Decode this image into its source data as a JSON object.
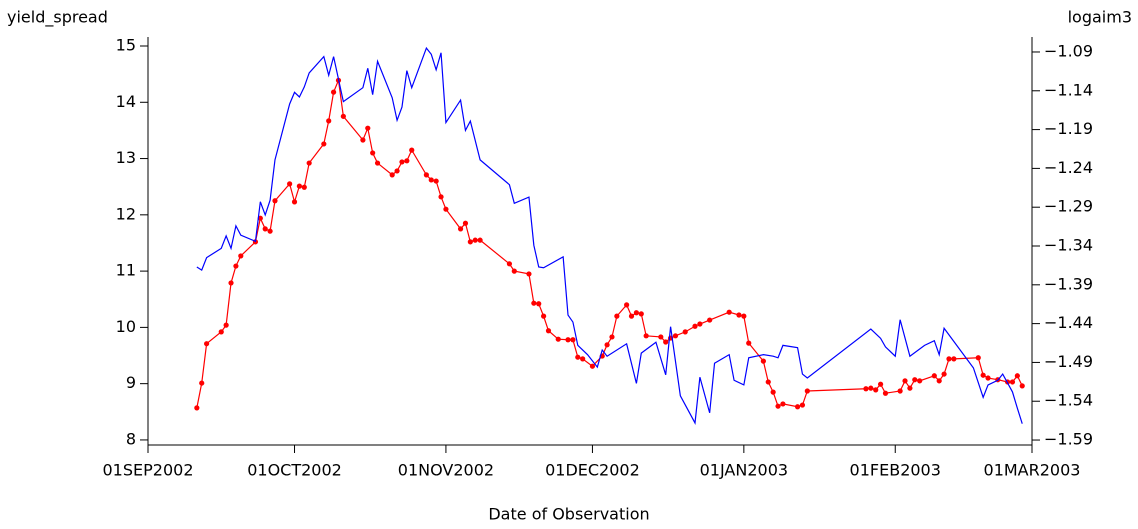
{
  "chart_data": {
    "type": "line",
    "ylabel": "yield_spread",
    "y2label": "logaim3",
    "xlabel": "Date of Observation",
    "xlim": [
      "2002-09-01",
      "2003-03-01"
    ],
    "xticks": [
      {
        "value": "2002-09-01",
        "label": "01SEP2002"
      },
      {
        "value": "2002-10-01",
        "label": "01OCT2002"
      },
      {
        "value": "2002-11-01",
        "label": "01NOV2002"
      },
      {
        "value": "2002-12-01",
        "label": "01DEC2002"
      },
      {
        "value": "2003-01-01",
        "label": "01JAN2003"
      },
      {
        "value": "2003-02-01",
        "label": "01FEB2003"
      },
      {
        "value": "2003-03-01",
        "label": "01MAR2003"
      }
    ],
    "ylim": [
      7.91,
      15.16
    ],
    "yticks": [
      8,
      9,
      10,
      11,
      12,
      13,
      14,
      15
    ],
    "y2lim": [
      -1.5964,
      -1.0707
    ],
    "y2ticks": [
      {
        "value": -1.09,
        "label": "−1.09"
      },
      {
        "value": -1.14,
        "label": "−1.14"
      },
      {
        "value": -1.19,
        "label": "−1.19"
      },
      {
        "value": -1.24,
        "label": "−1.24"
      },
      {
        "value": -1.29,
        "label": "−1.29"
      },
      {
        "value": -1.34,
        "label": "−1.34"
      },
      {
        "value": -1.39,
        "label": "−1.39"
      },
      {
        "value": -1.44,
        "label": "−1.44"
      },
      {
        "value": -1.49,
        "label": "−1.49"
      },
      {
        "value": -1.54,
        "label": "−1.54"
      },
      {
        "value": -1.59,
        "label": "−1.59"
      }
    ],
    "series": [
      {
        "color": "#ff0000",
        "markers": true,
        "x": [
          "2002-09-11",
          "2002-09-12",
          "2002-09-13",
          "2002-09-16",
          "2002-09-17",
          "2002-09-18",
          "2002-09-19",
          "2002-09-20",
          "2002-09-23",
          "2002-09-24",
          "2002-09-25",
          "2002-09-26",
          "2002-09-27",
          "2002-09-30",
          "2002-10-01",
          "2002-10-02",
          "2002-10-03",
          "2002-10-04",
          "2002-10-07",
          "2002-10-08",
          "2002-10-09",
          "2002-10-10",
          "2002-10-11",
          "2002-10-15",
          "2002-10-16",
          "2002-10-17",
          "2002-10-18",
          "2002-10-21",
          "2002-10-22",
          "2002-10-23",
          "2002-10-24",
          "2002-10-25",
          "2002-10-28",
          "2002-10-29",
          "2002-10-30",
          "2002-10-31",
          "2002-11-01",
          "2002-11-04",
          "2002-11-05",
          "2002-11-06",
          "2002-11-07",
          "2002-11-08",
          "2002-11-14",
          "2002-11-15",
          "2002-11-18",
          "2002-11-19",
          "2002-11-20",
          "2002-11-21",
          "2002-11-22",
          "2002-11-24",
          "2002-11-26",
          "2002-11-27",
          "2002-11-28",
          "2002-11-29",
          "2002-12-01",
          "2002-12-03",
          "2002-12-04",
          "2002-12-05",
          "2002-12-06",
          "2002-12-08",
          "2002-12-09",
          "2002-12-10",
          "2002-12-11",
          "2002-12-12",
          "2002-12-15",
          "2002-12-16",
          "2002-12-17",
          "2002-12-18",
          "2002-12-20",
          "2002-12-22",
          "2002-12-23",
          "2002-12-25",
          "2002-12-29",
          "2002-12-31",
          "2003-01-01",
          "2003-01-02",
          "2003-01-05",
          "2003-01-06",
          "2003-01-07",
          "2003-01-08",
          "2003-01-09",
          "2003-01-12",
          "2003-01-13",
          "2003-01-14",
          "2003-01-26",
          "2003-01-27",
          "2003-01-28",
          "2003-01-29",
          "2003-01-30",
          "2003-02-02",
          "2003-02-03",
          "2003-02-04",
          "2003-02-05",
          "2003-02-06",
          "2003-02-09",
          "2003-02-10",
          "2003-02-11",
          "2003-02-12",
          "2003-02-13",
          "2003-02-18",
          "2003-02-19",
          "2003-02-20",
          "2003-02-22",
          "2003-02-24",
          "2003-02-25",
          "2003-02-26",
          "2003-02-27"
        ],
        "values": [
          8.57,
          9.01,
          9.71,
          9.92,
          10.04,
          10.79,
          11.09,
          11.27,
          11.52,
          11.94,
          11.75,
          11.71,
          12.25,
          12.55,
          12.23,
          12.51,
          12.49,
          12.92,
          13.26,
          13.67,
          14.18,
          14.39,
          13.75,
          13.33,
          13.54,
          13.1,
          12.92,
          12.71,
          12.78,
          12.94,
          12.96,
          13.15,
          12.71,
          12.62,
          12.6,
          12.32,
          12.1,
          11.75,
          11.85,
          11.52,
          11.55,
          11.55,
          11.13,
          11.0,
          10.95,
          10.43,
          10.42,
          10.2,
          9.94,
          9.79,
          9.78,
          9.78,
          9.47,
          9.44,
          9.31,
          9.49,
          9.69,
          9.83,
          10.2,
          10.4,
          10.2,
          10.26,
          10.24,
          9.85,
          9.83,
          9.74,
          9.81,
          9.85,
          9.92,
          10.02,
          10.06,
          10.13,
          10.27,
          10.22,
          10.2,
          9.72,
          9.4,
          9.03,
          8.85,
          8.6,
          8.64,
          8.59,
          8.62,
          8.87,
          8.91,
          8.92,
          8.89,
          8.99,
          8.83,
          8.87,
          9.05,
          8.92,
          9.07,
          9.05,
          9.14,
          9.05,
          9.17,
          9.44,
          9.44,
          9.46,
          9.15,
          9.1,
          9.07,
          9.03,
          9.03,
          9.14,
          8.96
        ]
      },
      {
        "color": "#0000ff",
        "axis": "y2",
        "markers": false,
        "x": [
          "2002-09-11",
          "2002-09-12",
          "2002-09-13",
          "2002-09-16",
          "2002-09-17",
          "2002-09-18",
          "2002-09-19",
          "2002-09-20",
          "2002-09-23",
          "2002-09-24",
          "2002-09-25",
          "2002-09-26",
          "2002-09-27",
          "2002-09-30",
          "2002-10-01",
          "2002-10-02",
          "2002-10-03",
          "2002-10-04",
          "2002-10-07",
          "2002-10-08",
          "2002-10-09",
          "2002-10-11",
          "2002-10-15",
          "2002-10-16",
          "2002-10-17",
          "2002-10-18",
          "2002-10-21",
          "2002-10-22",
          "2002-10-23",
          "2002-10-24",
          "2002-10-25",
          "2002-10-28",
          "2002-10-29",
          "2002-10-30",
          "2002-10-31",
          "2002-11-01",
          "2002-11-04",
          "2002-11-05",
          "2002-11-06",
          "2002-11-08",
          "2002-11-14",
          "2002-11-15",
          "2002-11-18",
          "2002-11-19",
          "2002-11-20",
          "2002-11-21",
          "2002-11-25",
          "2002-11-26",
          "2002-11-27",
          "2002-11-28",
          "2002-11-30",
          "2002-12-02",
          "2002-12-03",
          "2002-12-04",
          "2002-12-08",
          "2002-12-10",
          "2002-12-11",
          "2002-12-14",
          "2002-12-16",
          "2002-12-17",
          "2002-12-19",
          "2002-12-22",
          "2002-12-23",
          "2002-12-25",
          "2002-12-26",
          "2002-12-29",
          "2002-12-30",
          "2003-01-01",
          "2003-01-02",
          "2003-01-05",
          "2003-01-07",
          "2003-01-08",
          "2003-01-09",
          "2003-01-12",
          "2003-01-13",
          "2003-01-14",
          "2003-01-27",
          "2003-01-29",
          "2003-01-30",
          "2003-02-01",
          "2003-02-02",
          "2003-02-04",
          "2003-02-07",
          "2003-02-09",
          "2003-02-10",
          "2003-02-11",
          "2003-02-17",
          "2003-02-19",
          "2003-02-20",
          "2003-02-22",
          "2003-02-23",
          "2003-02-25",
          "2003-02-26",
          "2003-02-27"
        ],
        "values": [
          -1.367,
          -1.371,
          -1.355,
          -1.343,
          -1.327,
          -1.343,
          -1.314,
          -1.326,
          -1.334,
          -1.283,
          -1.3,
          -1.281,
          -1.229,
          -1.157,
          -1.142,
          -1.148,
          -1.135,
          -1.117,
          -1.096,
          -1.12,
          -1.096,
          -1.154,
          -1.136,
          -1.111,
          -1.145,
          -1.102,
          -1.149,
          -1.178,
          -1.161,
          -1.114,
          -1.136,
          -1.085,
          -1.093,
          -1.113,
          -1.091,
          -1.181,
          -1.152,
          -1.191,
          -1.179,
          -1.229,
          -1.261,
          -1.285,
          -1.277,
          -1.339,
          -1.367,
          -1.368,
          -1.354,
          -1.429,
          -1.438,
          -1.468,
          -1.48,
          -1.496,
          -1.474,
          -1.482,
          -1.466,
          -1.517,
          -1.478,
          -1.464,
          -1.506,
          -1.444,
          -1.533,
          -1.568,
          -1.509,
          -1.555,
          -1.491,
          -1.48,
          -1.513,
          -1.519,
          -1.484,
          -1.48,
          -1.482,
          -1.484,
          -1.468,
          -1.471,
          -1.505,
          -1.51,
          -1.447,
          -1.459,
          -1.47,
          -1.482,
          -1.435,
          -1.482,
          -1.468,
          -1.462,
          -1.48,
          -1.446,
          -1.497,
          -1.535,
          -1.519,
          -1.513,
          -1.505,
          -1.528,
          -1.549,
          -1.569
        ]
      }
    ]
  }
}
